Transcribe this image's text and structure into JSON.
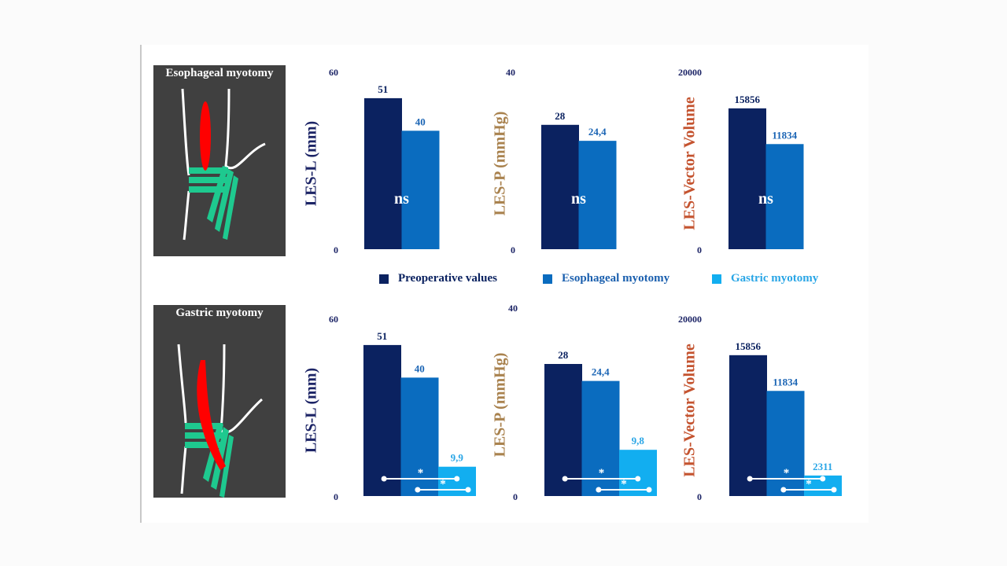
{
  "panels": [
    {
      "title": "Esophageal myotomy"
    },
    {
      "title": "Gastric myotomy"
    }
  ],
  "colors": {
    "preoperative": "#0b2260",
    "esophageal": "#0a6cbf",
    "gastric": "#12aef0",
    "les_l_label": "#1c2466",
    "les_p_label": "#a9824e",
    "vector_label": "#c4532f",
    "panel_bg": "#404040",
    "muscle": "#1ec98f",
    "myotomy": "#ff0000"
  },
  "legend": [
    {
      "label": "Preoperative values",
      "color": "#0b2260"
    },
    {
      "label": "Esophageal myotomy",
      "color": "#0a6cbf"
    },
    {
      "label": "Gastric myotomy",
      "color": "#12aef0"
    }
  ],
  "chart_data": [
    {
      "type": "bar",
      "row": "Esophageal myotomy",
      "ylabel": "LES-L (mm)",
      "ylim": [
        0,
        60
      ],
      "ticks": [
        "0",
        "60"
      ],
      "categories": [
        "Preoperative values",
        "Esophageal myotomy"
      ],
      "values": [
        51,
        40
      ],
      "labels": [
        "51",
        "40"
      ],
      "annotation": "ns"
    },
    {
      "type": "bar",
      "row": "Esophageal myotomy",
      "ylabel": "LES-P (mmHg)",
      "ylim": [
        0,
        40
      ],
      "ticks": [
        "0",
        "40"
      ],
      "categories": [
        "Preoperative values",
        "Esophageal myotomy"
      ],
      "values": [
        28,
        24.4
      ],
      "labels": [
        "28",
        "24,4"
      ],
      "annotation": "ns"
    },
    {
      "type": "bar",
      "row": "Esophageal myotomy",
      "ylabel": "LES-Vector Volume",
      "ylim": [
        0,
        20000
      ],
      "ticks": [
        "0",
        "20000"
      ],
      "categories": [
        "Preoperative values",
        "Esophageal myotomy"
      ],
      "values": [
        15856,
        11834
      ],
      "labels": [
        "15856",
        "11834"
      ],
      "annotation": "ns"
    },
    {
      "type": "bar",
      "row": "Gastric myotomy",
      "ylabel": "LES-L (mm)",
      "ylim": [
        0,
        60
      ],
      "ticks": [
        "0",
        "60"
      ],
      "categories": [
        "Preoperative values",
        "Esophageal myotomy",
        "Gastric myotomy"
      ],
      "values": [
        51,
        40,
        9.9
      ],
      "labels": [
        "51",
        "40",
        "9,9"
      ],
      "significance": [
        "*",
        "*"
      ]
    },
    {
      "type": "bar",
      "row": "Gastric myotomy",
      "ylabel": "LES-P (mmHg)",
      "ylim": [
        0,
        40
      ],
      "ticks": [
        "0",
        "40"
      ],
      "categories": [
        "Preoperative values",
        "Esophageal myotomy",
        "Gastric myotomy"
      ],
      "values": [
        28,
        24.4,
        9.8
      ],
      "labels": [
        "28",
        "24,4",
        "9,8"
      ],
      "significance": [
        "*",
        "*"
      ]
    },
    {
      "type": "bar",
      "row": "Gastric myotomy",
      "ylabel": "LES-Vector Volume",
      "ylim": [
        0,
        20000
      ],
      "ticks": [
        "0",
        "20000"
      ],
      "categories": [
        "Preoperative values",
        "Esophageal myotomy",
        "Gastric myotomy"
      ],
      "values": [
        15856,
        11834,
        2311
      ],
      "labels": [
        "15856",
        "11834",
        "2311"
      ],
      "significance": [
        "*",
        "*"
      ]
    }
  ]
}
